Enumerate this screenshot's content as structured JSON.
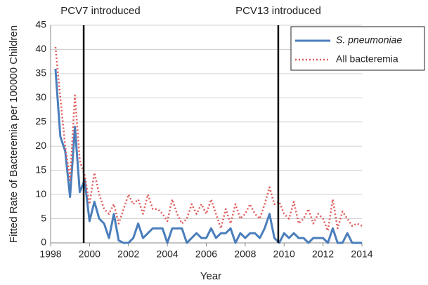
{
  "chart_data": {
    "type": "line",
    "y_label": "Fitted Rate of Bacteremia per 100000 Children",
    "x_label": "Year",
    "xlim": [
      1998,
      2014
    ],
    "xticks": [
      1998,
      2000,
      2002,
      2004,
      2006,
      2008,
      2010,
      2012,
      2014
    ],
    "ylim": [
      0,
      45
    ],
    "yticks": [
      0,
      5,
      10,
      15,
      20,
      25,
      30,
      35,
      40,
      45
    ],
    "grid": true,
    "legend": "upper right",
    "annotations": [
      {
        "text": "PCV7 introduced",
        "x": 1999.7
      },
      {
        "text": "PCV13 introduced",
        "x": 2009.7
      }
    ],
    "x": [
      1998.25,
      1998.5,
      1998.75,
      1999,
      1999.25,
      1999.5,
      1999.75,
      2000,
      2000.25,
      2000.5,
      2000.75,
      2001,
      2001.25,
      2001.5,
      2001.75,
      2002,
      2002.25,
      2002.5,
      2002.75,
      2003,
      2003.25,
      2003.5,
      2003.75,
      2004,
      2004.25,
      2004.5,
      2004.75,
      2005,
      2005.25,
      2005.5,
      2005.75,
      2006,
      2006.25,
      2006.5,
      2006.75,
      2007,
      2007.25,
      2007.5,
      2007.75,
      2008,
      2008.25,
      2008.5,
      2008.75,
      2009,
      2009.25,
      2009.5,
      2009.75,
      2010,
      2010.25,
      2010.5,
      2010.75,
      2011,
      2011.25,
      2011.5,
      2011.75,
      2012,
      2012.25,
      2012.5,
      2012.75,
      2013,
      2013.25,
      2013.5,
      2013.75,
      2014
    ],
    "series": [
      {
        "name": "S. pneumoniae",
        "color": "#4a7ebb",
        "style": "solid",
        "values": [
          36,
          22,
          19,
          9.5,
          24,
          10.5,
          13,
          4.5,
          8.5,
          5,
          4,
          1,
          6,
          0.5,
          0,
          0,
          1,
          4,
          1,
          2,
          3,
          3,
          3,
          0,
          3,
          3,
          3,
          0,
          1,
          2,
          1,
          1,
          3,
          1,
          2,
          2,
          3,
          0,
          2,
          1,
          2,
          2,
          1,
          3,
          6,
          1,
          0,
          2,
          1,
          2,
          1,
          1,
          0,
          1,
          1,
          1,
          0,
          3,
          0,
          0,
          2,
          0,
          0,
          0
        ]
      },
      {
        "name": "All bacteremia",
        "color": "#e05a5a",
        "style": "dotted",
        "values": [
          40.5,
          30,
          20,
          13,
          30.5,
          17,
          14,
          8,
          14.5,
          10,
          7,
          6,
          8,
          4,
          7,
          10,
          8,
          9,
          6,
          10,
          7,
          7,
          6,
          4.5,
          9,
          6,
          4,
          5,
          8,
          6,
          8,
          6,
          9,
          6,
          3,
          7,
          4,
          8,
          5,
          6,
          8,
          6,
          5,
          8,
          11.5,
          8,
          8.5,
          6,
          5,
          8.5,
          4,
          5,
          7,
          4,
          6,
          5,
          2.5,
          9,
          3,
          6.5,
          5,
          3.5,
          4,
          3.5
        ]
      }
    ]
  }
}
